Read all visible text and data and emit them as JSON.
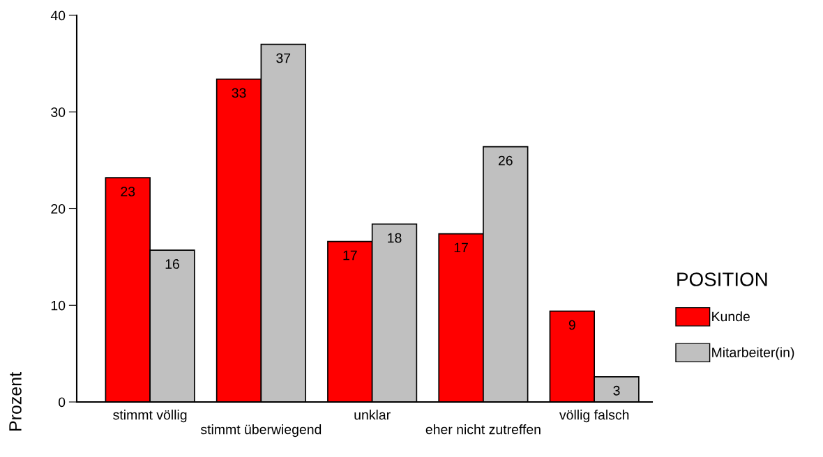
{
  "chart_data": {
    "type": "bar",
    "ylabel": "Prozent",
    "legend_title": "POSITION",
    "legend": "right",
    "grid": false,
    "categories": [
      "stimmt völlig",
      "stimmt überwiegend",
      "unklar",
      "eher nicht zutreffen",
      "völlig falsch"
    ],
    "ylim": [
      0,
      40
    ],
    "yticks": [
      0,
      10,
      20,
      30,
      40
    ],
    "series": [
      {
        "name": "Kunde",
        "color": "#ff0000",
        "values": [
          23.2,
          33.4,
          16.6,
          17.4,
          9.4
        ],
        "value_labels": [
          "23",
          "33",
          "17",
          "17",
          "9"
        ]
      },
      {
        "name": "Mitarbeiter(in)",
        "color": "#c0c0c0",
        "values": [
          15.7,
          37.0,
          18.4,
          26.4,
          2.6
        ],
        "value_labels": [
          "16",
          "37",
          "18",
          "26",
          "3"
        ]
      }
    ]
  }
}
